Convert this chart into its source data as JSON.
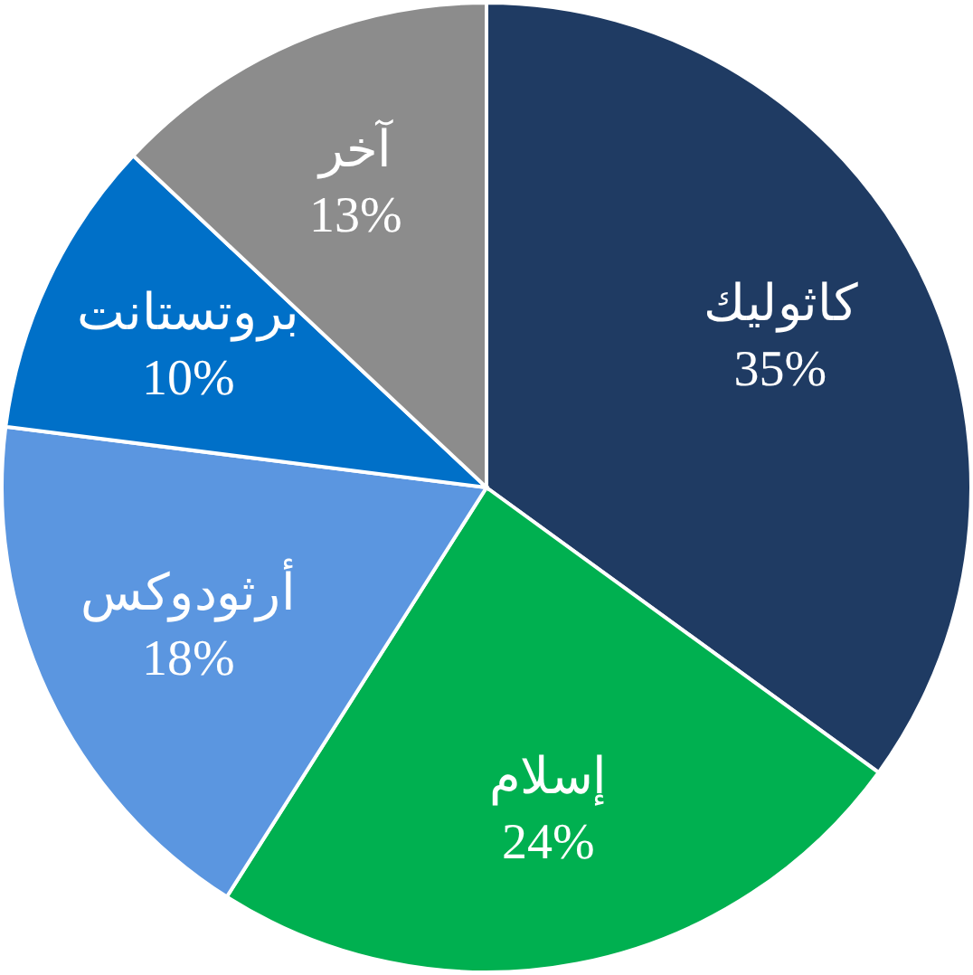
{
  "chart_data": {
    "type": "pie",
    "categories": [
      "كاثوليك",
      "إسلام",
      "أرثودوكس",
      "بروتستانت",
      "آخر"
    ],
    "values": [
      35,
      24,
      18,
      10,
      13
    ],
    "value_labels": [
      "35%",
      "24%",
      "18%",
      "10%",
      "13%"
    ],
    "colors": [
      "#1f3b63",
      "#00b050",
      "#5b96e0",
      "#0070c8",
      "#8c8c8c"
    ]
  }
}
